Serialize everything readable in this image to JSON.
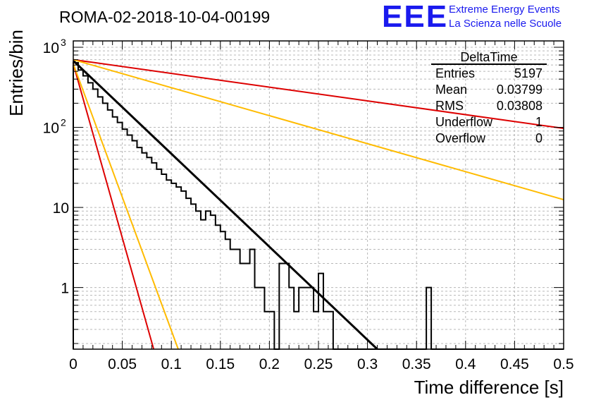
{
  "chart_data": {
    "type": "histogram",
    "title": "ROMA-02-2018-10-04-00199",
    "xlabel": "Time difference [s]",
    "ylabel": "Entries/bin",
    "xlim": [
      0,
      0.5
    ],
    "ylim_log": [
      0.17,
      1200
    ],
    "y_scale": "log",
    "grid": true,
    "x_ticks": [
      {
        "value": 0,
        "label": "0"
      },
      {
        "value": 0.05,
        "label": "0.05"
      },
      {
        "value": 0.1,
        "label": "0.1"
      },
      {
        "value": 0.15,
        "label": "0.15"
      },
      {
        "value": 0.2,
        "label": "0.2"
      },
      {
        "value": 0.25,
        "label": "0.25"
      },
      {
        "value": 0.3,
        "label": "0.3"
      },
      {
        "value": 0.35,
        "label": "0.35"
      },
      {
        "value": 0.4,
        "label": "0.4"
      },
      {
        "value": 0.45,
        "label": "0.45"
      },
      {
        "value": 0.5,
        "label": "0.5"
      }
    ],
    "y_ticks": [
      {
        "value": 1,
        "label": "1"
      },
      {
        "value": 10,
        "label": "10"
      },
      {
        "value": 100,
        "label": "10",
        "exponent": "2"
      },
      {
        "value": 1000,
        "label": "10",
        "exponent": "3"
      }
    ],
    "histogram": {
      "name": "DeltaTime",
      "bin_width": 0.005,
      "values": [
        640,
        520,
        440,
        360,
        300,
        240,
        200,
        165,
        135,
        115,
        95,
        80,
        68,
        56,
        48,
        42,
        36,
        30,
        26,
        22,
        20,
        18,
        16,
        13,
        11,
        9,
        7,
        9,
        8,
        6,
        5,
        4,
        3,
        3,
        2,
        2,
        3,
        1,
        1,
        0.5,
        0.5,
        0,
        2,
        2,
        1,
        0.5,
        1,
        1,
        1,
        0.5,
        1.5,
        0.5,
        0.5,
        0,
        0,
        0,
        0,
        0,
        0,
        0,
        0,
        0,
        0,
        0,
        0,
        0,
        0,
        0,
        0,
        0,
        0,
        0,
        1,
        0,
        0,
        0,
        0,
        0,
        0,
        0,
        0,
        0,
        0,
        0,
        0,
        0,
        0,
        0,
        0,
        0,
        0,
        0,
        0,
        0,
        0,
        0,
        0,
        0,
        0,
        0
      ]
    },
    "fit_lines": [
      {
        "name": "black-fit",
        "color": "#000000",
        "x0": 0,
        "y0": 680,
        "x1": 0.31,
        "y1": 0.17
      },
      {
        "name": "red-steep-fit",
        "color": "#dd0000",
        "x0": 0,
        "y0": 620,
        "x1": 0.082,
        "y1": 0.17
      },
      {
        "name": "orange-steep-fit",
        "color": "#ffbb00",
        "x0": 0,
        "y0": 620,
        "x1": 0.107,
        "y1": 0.17
      },
      {
        "name": "red-shallow-fit",
        "color": "#dd0000",
        "x0": 0,
        "y0": 700,
        "x1": 0.5,
        "y1": 97
      },
      {
        "name": "orange-shallow-fit",
        "color": "#ffbb00",
        "x0": 0,
        "y0": 700,
        "x1": 0.5,
        "y1": 12.5
      }
    ],
    "stats_box": {
      "title": "DeltaTime",
      "rows": [
        {
          "label": "Entries",
          "value": "5197"
        },
        {
          "label": "Mean",
          "value": "0.03799"
        },
        {
          "label": "RMS",
          "value": "0.03808"
        },
        {
          "label": "Underflow",
          "value": "1"
        },
        {
          "label": "Overflow",
          "value": "0"
        }
      ]
    }
  },
  "logo": {
    "mark": "EEE",
    "line1": "Extreme Energy Events",
    "line2": "La Scienza nelle Scuole",
    "color": "#1a1aee"
  }
}
